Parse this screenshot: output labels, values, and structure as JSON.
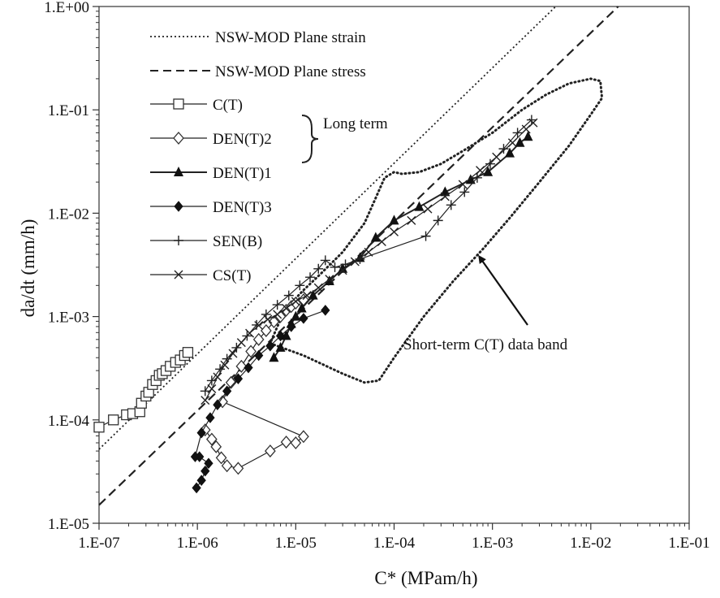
{
  "chart_data": {
    "type": "scatter",
    "title": "",
    "xlabel": "C* (MPam/h)",
    "ylabel": "da/dt (mm/h)",
    "x_scale": "log",
    "y_scale": "log",
    "xlim": [
      1e-07,
      0.1
    ],
    "ylim": [
      1e-05,
      1
    ],
    "grid": false,
    "x_ticks": [
      {
        "value": 1e-07,
        "label": "1.E-07"
      },
      {
        "value": 1e-06,
        "label": "1.E-06"
      },
      {
        "value": 1e-05,
        "label": "1.E-05"
      },
      {
        "value": 0.0001,
        "label": "1.E-04"
      },
      {
        "value": 0.001,
        "label": "1.E-03"
      },
      {
        "value": 0.01,
        "label": "1.E-02"
      },
      {
        "value": 0.1,
        "label": "1.E-01"
      }
    ],
    "y_ticks": [
      {
        "value": 1e-05,
        "label": "1.E-05"
      },
      {
        "value": 0.0001,
        "label": "1.E-04"
      },
      {
        "value": 0.001,
        "label": "1.E-03"
      },
      {
        "value": 0.01,
        "label": "1.E-02"
      },
      {
        "value": 0.1,
        "label": "1.E-01"
      },
      {
        "value": 1,
        "label": "1.E+00"
      }
    ],
    "legend_position": "top-left",
    "legend_group_label": "Long term",
    "lines": [
      {
        "name": "NSW-MOD Plane strain",
        "style": "dotted",
        "x": [
          1e-07,
          0.0044
        ],
        "y": [
          5.2e-05,
          1.0
        ]
      },
      {
        "name": "NSW-MOD Plane stress",
        "style": "dashed",
        "x": [
          1e-07,
          0.019
        ],
        "y": [
          1.5e-05,
          1.0
        ]
      }
    ],
    "series": [
      {
        "name": "C(T)",
        "marker": "square-open",
        "connected": true,
        "x": [
          1e-07,
          1.4e-07,
          1.9e-07,
          2.2e-07,
          2.6e-07,
          2.7e-07,
          3e-07,
          3.2e-07,
          3.5e-07,
          3.8e-07,
          4.1e-07,
          4.4e-07,
          4.8e-07,
          5.3e-07,
          6e-07,
          6.7e-07,
          7.4e-07,
          8e-07
        ],
        "y": [
          8.5e-05,
          0.0001,
          0.000112,
          0.000115,
          0.00012,
          0.000145,
          0.00017,
          0.000185,
          0.00022,
          0.00024,
          0.00027,
          0.00028,
          0.0003,
          0.00033,
          0.00036,
          0.00038,
          0.00042,
          0.00045
        ]
      },
      {
        "name": "DEN(T)2",
        "marker": "diamond-open",
        "connected": true,
        "x": [
          1.2e-06,
          1.4e-06,
          1.55e-06,
          1.75e-06,
          2e-06,
          2.6e-06,
          5.5e-06,
          8e-06,
          1e-05,
          1.2e-05,
          1.8e-06,
          2.2e-06,
          2.8e-06,
          3.5e-06,
          4.2e-06,
          5e-06,
          6e-06,
          7e-06,
          8e-06,
          9e-06,
          1e-05,
          1.2e-05
        ],
        "y": [
          8e-05,
          6.5e-05,
          5.5e-05,
          4.3e-05,
          3.6e-05,
          3.4e-05,
          5e-05,
          6.1e-05,
          6e-05,
          6.9e-05,
          0.00015,
          0.00023,
          0.00033,
          0.00046,
          0.0006,
          0.00073,
          0.00089,
          0.001,
          0.00115,
          0.00125,
          0.00135,
          0.00145
        ]
      },
      {
        "name": "DEN(T)1",
        "marker": "triangle-filled",
        "connected": true,
        "x": [
          6e-06,
          7e-06,
          8e-06,
          9e-06,
          1e-05,
          1.15e-05,
          1.5e-05,
          2.2e-05,
          3e-05,
          4.5e-05,
          6.5e-05,
          0.0001,
          0.00018,
          0.00033,
          0.0006,
          0.0009,
          0.0015,
          0.0019,
          0.0023
        ],
        "y": [
          0.0004,
          0.0005,
          0.00065,
          0.00085,
          0.001,
          0.0012,
          0.0016,
          0.0022,
          0.0029,
          0.0037,
          0.0058,
          0.0085,
          0.0115,
          0.016,
          0.021,
          0.025,
          0.038,
          0.048,
          0.055
        ]
      },
      {
        "name": "DEN(T)3",
        "marker": "diamond-filled",
        "connected": true,
        "x": [
          9.8e-07,
          1.1e-06,
          1.2e-06,
          1.3e-06,
          1.05e-06,
          9.5e-07,
          1.1e-06,
          1.35e-06,
          1.6e-06,
          2e-06,
          2.6e-06,
          3.3e-06,
          4.2e-06,
          5.5e-06,
          7e-06,
          9e-06,
          1.2e-05,
          2e-05
        ],
        "y": [
          2.2e-05,
          2.6e-05,
          3.2e-05,
          3.8e-05,
          4.4e-05,
          4.4e-05,
          7.5e-05,
          0.000105,
          0.00014,
          0.00019,
          0.00025,
          0.00032,
          0.00042,
          0.00052,
          0.00065,
          0.0008,
          0.00096,
          0.00115
        ]
      },
      {
        "name": "SEN(B)",
        "marker": "plus",
        "connected": true,
        "x": [
          1.2e-06,
          1.4e-06,
          1.7e-06,
          2e-06,
          2.5e-06,
          3.2e-06,
          4e-06,
          5e-06,
          6.5e-06,
          8.5e-06,
          1.1e-05,
          1.4e-05,
          1.7e-05,
          2e-05,
          2.5e-05,
          3.2e-05,
          4.5e-05,
          0.00021,
          0.00028,
          0.00038,
          0.00052,
          0.0007,
          0.00095,
          0.0013,
          0.0018,
          0.0025
        ],
        "y": [
          0.00019,
          0.00024,
          0.00031,
          0.00039,
          0.0005,
          0.00065,
          0.00083,
          0.00105,
          0.0013,
          0.0016,
          0.002,
          0.0024,
          0.0029,
          0.0035,
          0.003,
          0.0032,
          0.0036,
          0.006,
          0.0085,
          0.012,
          0.016,
          0.022,
          0.03,
          0.042,
          0.06,
          0.08
        ]
      },
      {
        "name": "CS(T)",
        "marker": "x",
        "connected": true,
        "x": [
          1.2e-06,
          1.4e-06,
          1.6e-06,
          1.9e-06,
          2.3e-06,
          2.8e-06,
          3.4e-06,
          4.2e-06,
          5.2e-06,
          6.5e-06,
          8e-06,
          1e-05,
          1.3e-05,
          1.7e-05,
          2.2e-05,
          3e-05,
          4e-05,
          5.5e-05,
          7.5e-05,
          0.0001,
          0.00015,
          0.00022,
          0.00033,
          0.0005,
          0.00075,
          0.0011,
          0.0016,
          0.0022,
          0.0026
        ],
        "y": [
          0.000155,
          0.0002,
          0.00026,
          0.00034,
          0.00044,
          0.00056,
          0.00069,
          0.00082,
          0.00094,
          0.00105,
          0.0012,
          0.0014,
          0.0016,
          0.0019,
          0.0023,
          0.0028,
          0.0034,
          0.0042,
          0.0053,
          0.0066,
          0.0085,
          0.011,
          0.0145,
          0.019,
          0.026,
          0.035,
          0.048,
          0.065,
          0.075
        ]
      }
    ],
    "annotations": [
      {
        "text": "Short-term C(T) data band",
        "type": "band-outline-with-arrow"
      }
    ],
    "band_outline": {
      "x": [
        5.5e-06,
        1.2e-05,
        3e-05,
        5e-05,
        7e-05,
        0.0001,
        0.0002,
        0.0004,
        0.0008,
        0.0015,
        0.003,
        0.006,
        0.01,
        0.013,
        0.0125,
        0.01,
        0.006,
        0.0035,
        0.002,
        0.001,
        0.0005,
        0.0003,
        0.00018,
        0.00012,
        0.0001,
        8e-05,
        6.5e-05,
        5e-05,
        3e-05,
        1.8e-05,
        1.2e-05,
        8e-06,
        6.5e-06,
        5.5e-06
      ],
      "y": [
        0.00055,
        0.00042,
        0.00028,
        0.00023,
        0.00024,
        0.0004,
        0.001,
        0.0022,
        0.0045,
        0.009,
        0.02,
        0.045,
        0.09,
        0.13,
        0.19,
        0.2,
        0.18,
        0.14,
        0.1,
        0.06,
        0.04,
        0.03,
        0.025,
        0.024,
        0.025,
        0.022,
        0.014,
        0.008,
        0.0042,
        0.0026,
        0.0018,
        0.0012,
        0.0008,
        0.00055
      ]
    }
  }
}
